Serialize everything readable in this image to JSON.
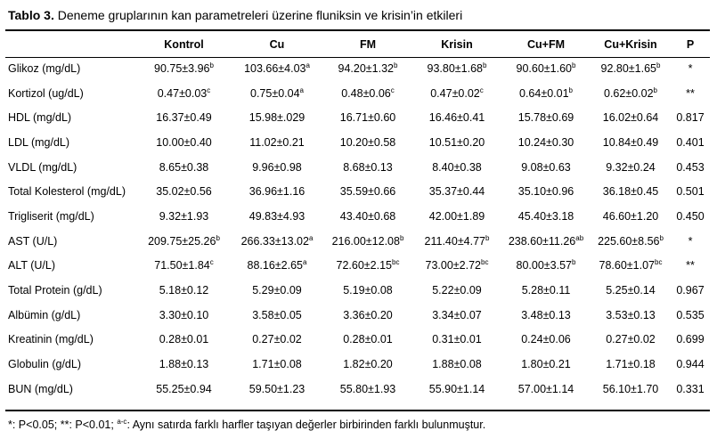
{
  "caption": {
    "label": "Tablo 3.",
    "text": "Deneme gruplarının kan parametreleri üzerine fluniksin ve krisin’in etkileri"
  },
  "headers": [
    "",
    "Kontrol",
    "Cu",
    "FM",
    "Krisin",
    "Cu+FM",
    "Cu+Krisin",
    "P"
  ],
  "rows": [
    {
      "param": "Glikoz (mg/dL)",
      "cells": [
        [
          "90.75±3.96",
          "b"
        ],
        [
          "103.66±4.03",
          "a"
        ],
        [
          "94.20±1.32",
          "b"
        ],
        [
          "93.80±1.68",
          "b"
        ],
        [
          "90.60±1.60",
          "b"
        ],
        [
          "92.80±1.65",
          "b"
        ]
      ],
      "p": "*"
    },
    {
      "param": "Kortizol (ug/dL)",
      "cells": [
        [
          "0.47±0.03",
          "c"
        ],
        [
          "0.75±0.04",
          "a"
        ],
        [
          "0.48±0.06",
          "c"
        ],
        [
          "0.47±0.02",
          "c"
        ],
        [
          "0.64±0.01",
          "b"
        ],
        [
          "0.62±0.02",
          "b"
        ]
      ],
      "p": "**"
    },
    {
      "param": "HDL (mg/dL)",
      "cells": [
        [
          "16.37±0.49",
          ""
        ],
        [
          "15.98±.029",
          ""
        ],
        [
          "16.71±0.60",
          ""
        ],
        [
          "16.46±0.41",
          ""
        ],
        [
          "15.78±0.69",
          ""
        ],
        [
          "16.02±0.64",
          ""
        ]
      ],
      "p": "0.817"
    },
    {
      "param": "LDL (mg/dL)",
      "cells": [
        [
          "10.00±0.40",
          ""
        ],
        [
          "11.02±0.21",
          ""
        ],
        [
          "10.20±0.58",
          ""
        ],
        [
          "10.51±0.20",
          ""
        ],
        [
          "10.24±0.30",
          ""
        ],
        [
          "10.84±0.49",
          ""
        ]
      ],
      "p": "0.401"
    },
    {
      "param": "VLDL (mg/dL)",
      "cells": [
        [
          "8.65±0.38",
          ""
        ],
        [
          "9.96±0.98",
          ""
        ],
        [
          "8.68±0.13",
          ""
        ],
        [
          "8.40±0.38",
          ""
        ],
        [
          "9.08±0.63",
          ""
        ],
        [
          "9.32±0.24",
          ""
        ]
      ],
      "p": "0.453"
    },
    {
      "param": "Total Kolesterol (mg/dL)",
      "cells": [
        [
          "35.02±0.56",
          ""
        ],
        [
          "36.96±1.16",
          ""
        ],
        [
          "35.59±0.66",
          ""
        ],
        [
          "35.37±0.44",
          ""
        ],
        [
          "35.10±0.96",
          ""
        ],
        [
          "36.18±0.45",
          ""
        ]
      ],
      "p": "0.501"
    },
    {
      "param": "Trigliserit (mg/dL)",
      "cells": [
        [
          "9.32±1.93",
          ""
        ],
        [
          "49.83±4.93",
          ""
        ],
        [
          "43.40±0.68",
          ""
        ],
        [
          "42.00±1.89",
          ""
        ],
        [
          "45.40±3.18",
          ""
        ],
        [
          "46.60±1.20",
          ""
        ]
      ],
      "p": "0.450"
    },
    {
      "param": "AST (U/L)",
      "cells": [
        [
          "209.75±25.26",
          "b"
        ],
        [
          "266.33±13.02",
          "a"
        ],
        [
          "216.00±12.08",
          "b"
        ],
        [
          "211.40±4.77",
          "b"
        ],
        [
          "238.60±11.26",
          "ab"
        ],
        [
          "225.60±8.56",
          "b"
        ]
      ],
      "p": "*"
    },
    {
      "param": "ALT (U/L)",
      "cells": [
        [
          "71.50±1.84",
          "c"
        ],
        [
          "88.16±2.65",
          "a"
        ],
        [
          "72.60±2.15",
          "bc"
        ],
        [
          "73.00±2.72",
          "bc"
        ],
        [
          "80.00±3.57",
          "b"
        ],
        [
          "78.60±1.07",
          "bc"
        ]
      ],
      "p": "**"
    },
    {
      "param": "Total Protein (g/dL)",
      "cells": [
        [
          "5.18±0.12",
          ""
        ],
        [
          "5.29±0.09",
          ""
        ],
        [
          "5.19±0.08",
          ""
        ],
        [
          "5.22±0.09",
          ""
        ],
        [
          "5.28±0.11",
          ""
        ],
        [
          "5.25±0.14",
          ""
        ]
      ],
      "p": "0.967"
    },
    {
      "param": "Albümin (g/dL)",
      "cells": [
        [
          "3.30±0.10",
          ""
        ],
        [
          "3.58±0.05",
          ""
        ],
        [
          "3.36±0.20",
          ""
        ],
        [
          "3.34±0.07",
          ""
        ],
        [
          "3.48±0.13",
          ""
        ],
        [
          "3.53±0.13",
          ""
        ]
      ],
      "p": "0.535"
    },
    {
      "param": "Kreatinin (mg/dL)",
      "cells": [
        [
          "0.28±0.01",
          ""
        ],
        [
          "0.27±0.02",
          ""
        ],
        [
          "0.28±0.01",
          ""
        ],
        [
          "0.31±0.01",
          ""
        ],
        [
          "0.24±0.06",
          ""
        ],
        [
          "0.27±0.02",
          ""
        ]
      ],
      "p": "0.699"
    },
    {
      "param": "Globulin (g/dL)",
      "cells": [
        [
          "1.88±0.13",
          ""
        ],
        [
          "1.71±0.08",
          ""
        ],
        [
          "1.82±0.20",
          ""
        ],
        [
          "1.88±0.08",
          ""
        ],
        [
          "1.80±0.21",
          ""
        ],
        [
          "1.71±0.18",
          ""
        ]
      ],
      "p": "0.944"
    },
    {
      "param": "BUN (mg/dL)",
      "cells": [
        [
          "55.25±0.94",
          ""
        ],
        [
          "59.50±1.23",
          ""
        ],
        [
          "55.80±1.93",
          ""
        ],
        [
          "55.90±1.14",
          ""
        ],
        [
          "57.00±1.14",
          ""
        ],
        [
          "56.10±1.70",
          ""
        ]
      ],
      "p": "0.331"
    }
  ],
  "footnote": {
    "text1": "*: P<0.05;  **: P<0.01; ",
    "sup": "a-c",
    "text2": ": Aynı satırda farklı harfler taşıyan değerler birbirinden farklı bulunmuştur."
  }
}
